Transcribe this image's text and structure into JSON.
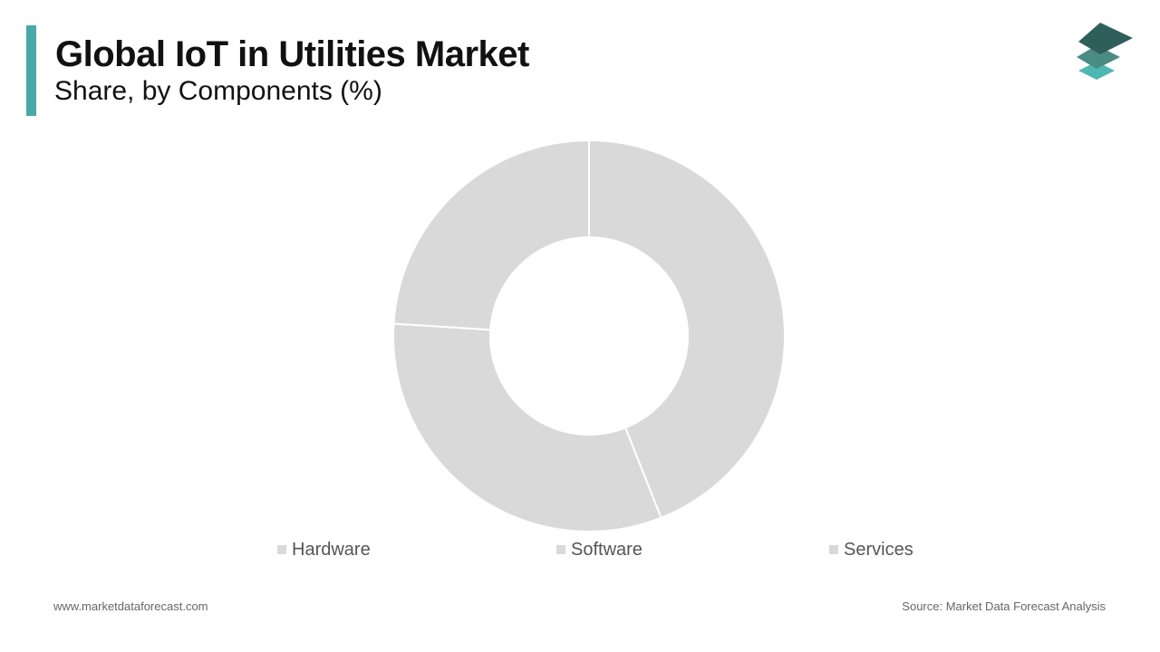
{
  "header": {
    "title": "Global IoT in Utilities Market",
    "subtitle": "Share, by Components (%)"
  },
  "colors": {
    "accent": "#4aa8a8",
    "slice": "#d9d9d9",
    "legend_swatch": "#d9d9d9",
    "logo_top": "#2f5f5a",
    "logo_mid": "#4a8b84",
    "logo_bottom": "#4fb7b3"
  },
  "icons": {
    "logo": "stacked-layers-logo-icon"
  },
  "chart_data": {
    "type": "donut",
    "title": "Global IoT in Utilities Market",
    "subtitle": "Share, by Components (%)",
    "categories": [
      "Hardware",
      "Software",
      "Services"
    ],
    "values": [
      44,
      32,
      24
    ],
    "legend_position": "bottom"
  },
  "footer": {
    "website": "www.marketdataforecast.com",
    "source": "Source: Market Data Forecast Analysis"
  }
}
